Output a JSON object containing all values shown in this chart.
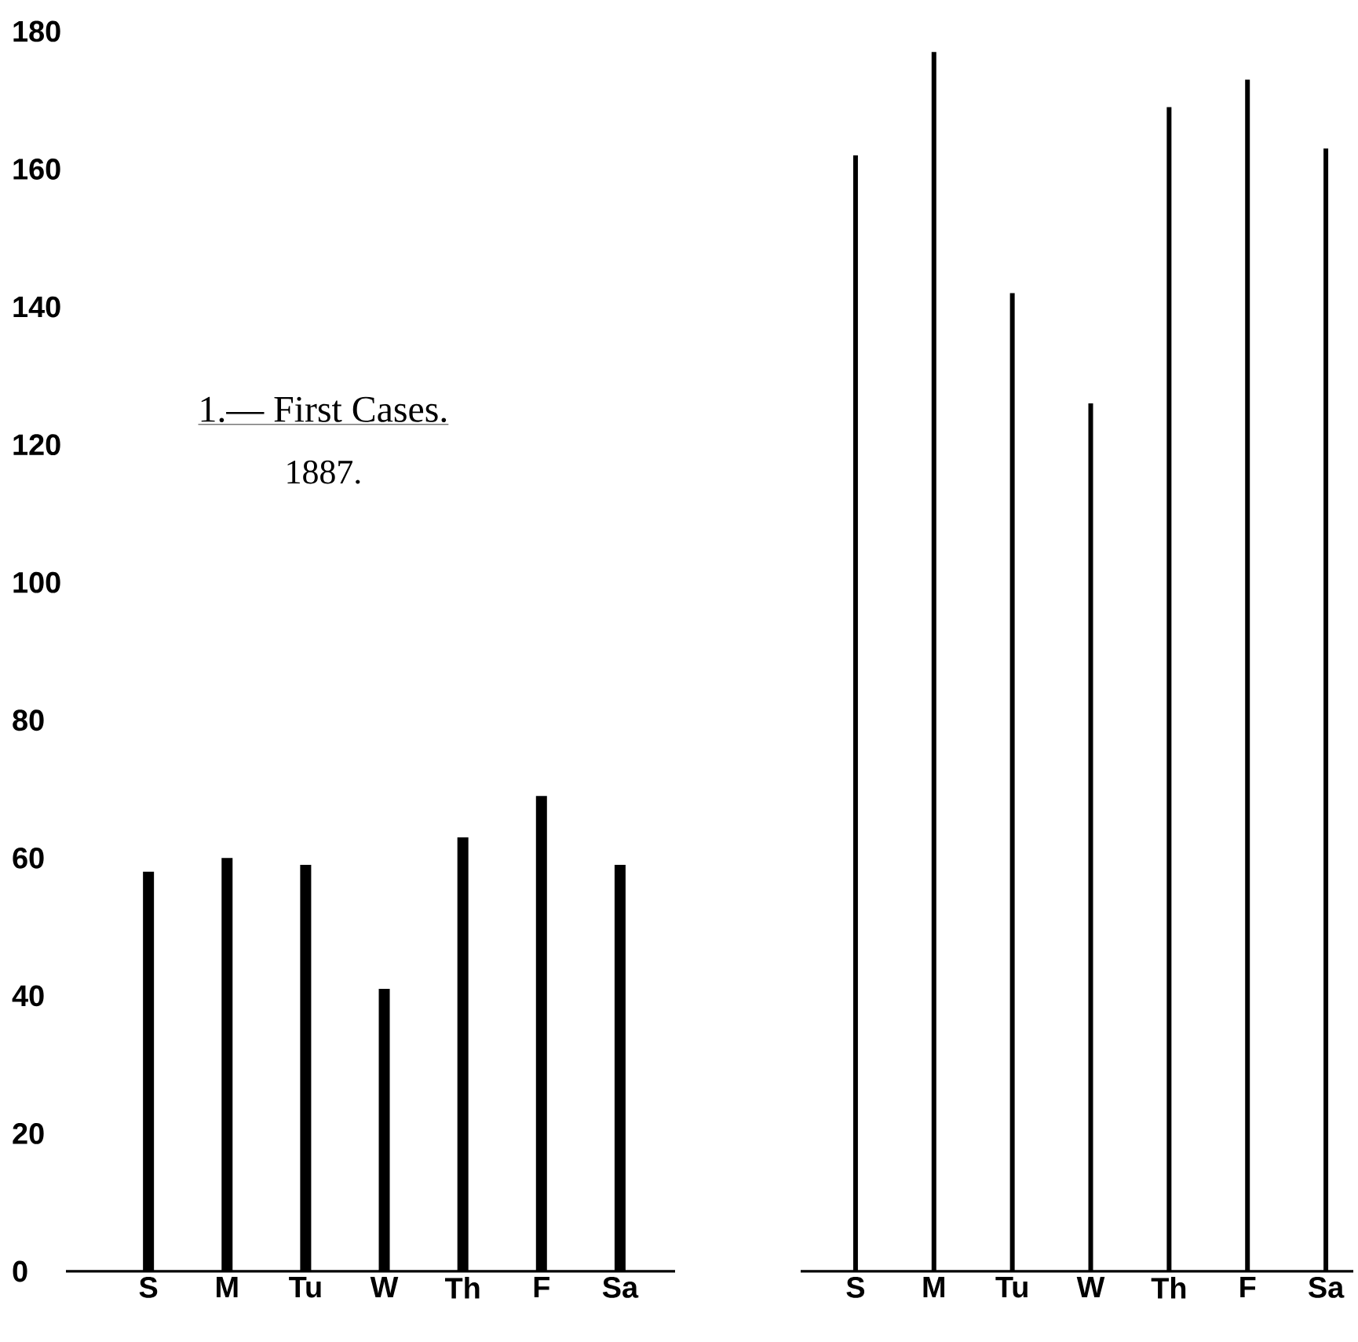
{
  "chart_data": [
    {
      "type": "bar",
      "title": "1.— First Cases.",
      "subtitle": "1887.",
      "categories": [
        "S",
        "M",
        "Tu",
        "W",
        "Th",
        "F",
        "Sa"
      ],
      "values": [
        58,
        60,
        59,
        41,
        63,
        69,
        59
      ],
      "color": "#000000",
      "ylim": [
        0,
        180
      ],
      "yticks": [
        0,
        20,
        40,
        60,
        80,
        100,
        120,
        140,
        160,
        180
      ]
    },
    {
      "type": "bar",
      "categories": [
        "S",
        "M",
        "Tu",
        "W",
        "Th",
        "F",
        "Sa"
      ],
      "values": [
        162,
        177,
        142,
        126,
        169,
        173,
        163
      ],
      "color": "#000000",
      "ylim": [
        0,
        180
      ],
      "yticks": [
        0,
        20,
        40,
        60,
        80,
        100,
        120,
        140,
        160,
        180
      ],
      "tick_labels": "x"
    }
  ]
}
